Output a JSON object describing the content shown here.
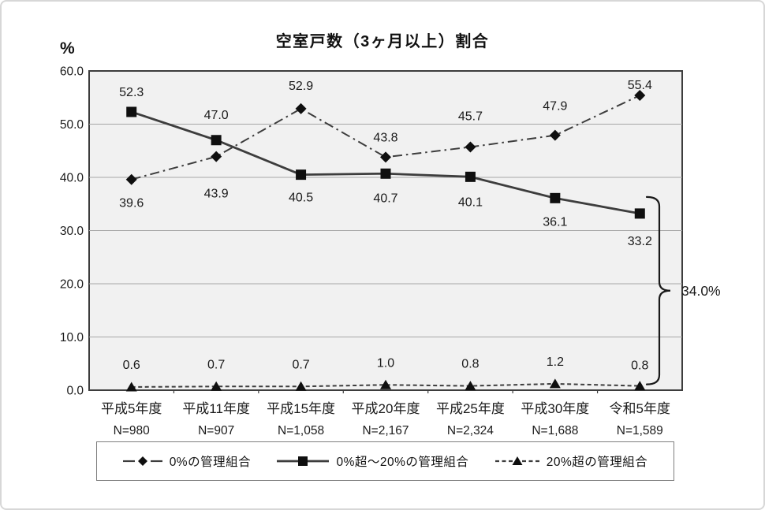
{
  "chart_data": {
    "type": "line",
    "title": "空室戸数（3ヶ月以上）割合",
    "ylabel": "%",
    "xlabel": "",
    "ylim": [
      0,
      60
    ],
    "yticks": [
      0,
      10,
      20,
      30,
      40,
      50,
      60
    ],
    "grid": "horizontal",
    "legend_position": "bottom",
    "categories": [
      "平成5年度",
      "平成11年度",
      "平成15年度",
      "平成20年度",
      "平成25年度",
      "平成30年度",
      "令和5年度"
    ],
    "sample_sizes": [
      "N=980",
      "N=907",
      "N=1,058",
      "N=2,167",
      "N=2,324",
      "N=1,688",
      "N=1,589"
    ],
    "series": [
      {
        "name": "0%の管理組合",
        "marker": "diamond",
        "line": "dashdot",
        "values": [
          39.6,
          43.9,
          52.9,
          43.8,
          45.7,
          47.9,
          55.4
        ],
        "label_dy": [
          29,
          46,
          -30,
          -26,
          -40,
          -38,
          -14
        ]
      },
      {
        "name": "0%超～20%の管理組合",
        "marker": "square",
        "line": "solid",
        "values": [
          52.3,
          47.0,
          40.5,
          40.7,
          40.1,
          36.1,
          33.2
        ],
        "label_dy": [
          -26,
          -33,
          28,
          30,
          31,
          29,
          34
        ]
      },
      {
        "name": "20%超の管理組合",
        "marker": "triangle",
        "line": "dashed",
        "values": [
          0.6,
          0.7,
          0.7,
          1.0,
          0.8,
          1.2,
          0.8
        ],
        "label_dy": [
          -29,
          -29,
          -29,
          -29,
          -29,
          -29,
          -27
        ]
      }
    ],
    "annotation": {
      "label": "34.0%",
      "from_value": 33.2,
      "to_value": 0.8
    }
  },
  "colors": {
    "line": "#3d3d3d",
    "marker": "#0f0f0f",
    "plot_bg": "#f1f1f1",
    "grid": "#a6a6a6",
    "plot_border": "#3d3d3d",
    "text": "#1a1a1a"
  }
}
